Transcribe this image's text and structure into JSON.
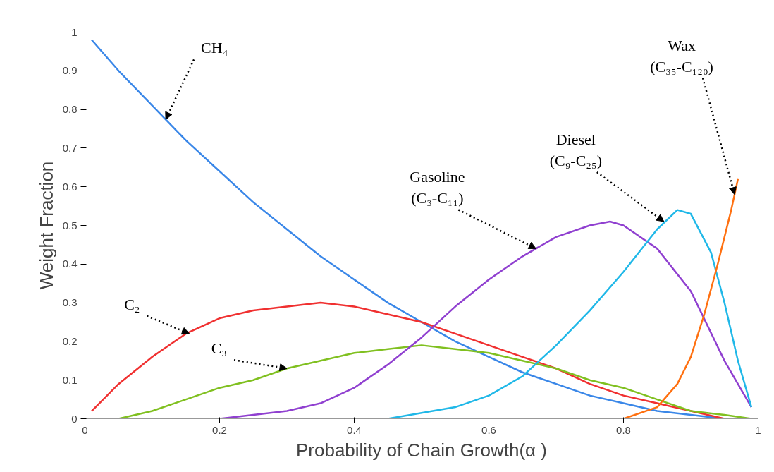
{
  "chart_data": {
    "type": "line",
    "xlabel": "Probability of Chain Growth(α )",
    "ylabel": "Weight Fraction",
    "xlim": [
      0,
      1
    ],
    "ylim": [
      0,
      1
    ],
    "xticks": [
      0,
      0.2,
      0.4,
      0.6,
      0.8,
      1
    ],
    "yticks": [
      0,
      0.1,
      0.2,
      0.3,
      0.4,
      0.5,
      0.6,
      0.7,
      0.8,
      0.9,
      1
    ],
    "grid": false,
    "line_style": "solid",
    "marker": "none",
    "series": [
      {
        "color": "#3a87e8",
        "x": [
          0.01,
          0.05,
          0.1,
          0.15,
          0.2,
          0.25,
          0.3,
          0.35,
          0.4,
          0.45,
          0.5,
          0.55,
          0.6,
          0.65,
          0.7,
          0.75,
          0.8,
          0.85,
          0.9,
          0.95,
          0.99
        ],
        "values": [
          0.98,
          0.9,
          0.81,
          0.72,
          0.64,
          0.56,
          0.49,
          0.42,
          0.36,
          0.3,
          0.25,
          0.2,
          0.16,
          0.12,
          0.09,
          0.06,
          0.04,
          0.02,
          0.01,
          0.0,
          0.0
        ]
      },
      {
        "color": "#f03030",
        "x": [
          0.01,
          0.05,
          0.1,
          0.15,
          0.2,
          0.25,
          0.3,
          0.35,
          0.4,
          0.45,
          0.5,
          0.55,
          0.6,
          0.65,
          0.7,
          0.75,
          0.8,
          0.85,
          0.9,
          0.95,
          0.99
        ],
        "values": [
          0.02,
          0.09,
          0.16,
          0.22,
          0.26,
          0.28,
          0.29,
          0.3,
          0.29,
          0.27,
          0.25,
          0.22,
          0.19,
          0.16,
          0.13,
          0.09,
          0.06,
          0.04,
          0.02,
          0.0,
          0.0
        ]
      },
      {
        "color": "#80c020",
        "x": [
          0.05,
          0.1,
          0.15,
          0.2,
          0.25,
          0.3,
          0.35,
          0.4,
          0.45,
          0.5,
          0.55,
          0.6,
          0.65,
          0.7,
          0.75,
          0.8,
          0.85,
          0.9,
          0.95,
          0.99
        ],
        "values": [
          0.0,
          0.02,
          0.05,
          0.08,
          0.1,
          0.13,
          0.15,
          0.17,
          0.18,
          0.19,
          0.18,
          0.17,
          0.15,
          0.13,
          0.1,
          0.08,
          0.05,
          0.02,
          0.01,
          0.0
        ]
      },
      {
        "color": "#9040d0",
        "x": [
          0,
          0.2,
          0.3,
          0.35,
          0.4,
          0.45,
          0.5,
          0.55,
          0.6,
          0.65,
          0.7,
          0.75,
          0.78,
          0.8,
          0.85,
          0.9,
          0.95,
          0.99
        ],
        "values": [
          0.0,
          0.0,
          0.02,
          0.04,
          0.08,
          0.14,
          0.21,
          0.29,
          0.36,
          0.42,
          0.47,
          0.5,
          0.51,
          0.5,
          0.44,
          0.33,
          0.15,
          0.03
        ]
      },
      {
        "color": "#20b8e8",
        "x": [
          0.2,
          0.45,
          0.55,
          0.6,
          0.65,
          0.7,
          0.75,
          0.8,
          0.85,
          0.88,
          0.9,
          0.93,
          0.95,
          0.97,
          0.99
        ],
        "values": [
          0.0,
          0.0,
          0.03,
          0.06,
          0.11,
          0.19,
          0.28,
          0.38,
          0.49,
          0.54,
          0.53,
          0.43,
          0.3,
          0.15,
          0.03
        ]
      },
      {
        "color": "#ff7010",
        "x": [
          0.45,
          0.8,
          0.85,
          0.88,
          0.9,
          0.92,
          0.94,
          0.96,
          0.97
        ],
        "values": [
          0.0,
          0.0,
          0.03,
          0.09,
          0.16,
          0.27,
          0.4,
          0.54,
          0.62
        ]
      }
    ],
    "annotations": [
      {
        "text": "CH₄",
        "x": 0.12,
        "y": 0.774
      },
      {
        "text": "C₂",
        "x": 0.155,
        "y": 0.22
      },
      {
        "text": "C₃",
        "x": 0.3,
        "y": 0.13
      },
      {
        "text": "Gasoline\n(C₃-C₁₁)",
        "x": 0.67,
        "y": 0.44
      },
      {
        "text": "Diesel\n(C₉-C₂₅)",
        "x": 0.86,
        "y": 0.51
      },
      {
        "text": "Wax\n(C₃₅-C₁₂₀)",
        "x": 0.965,
        "y": 0.58
      }
    ]
  }
}
